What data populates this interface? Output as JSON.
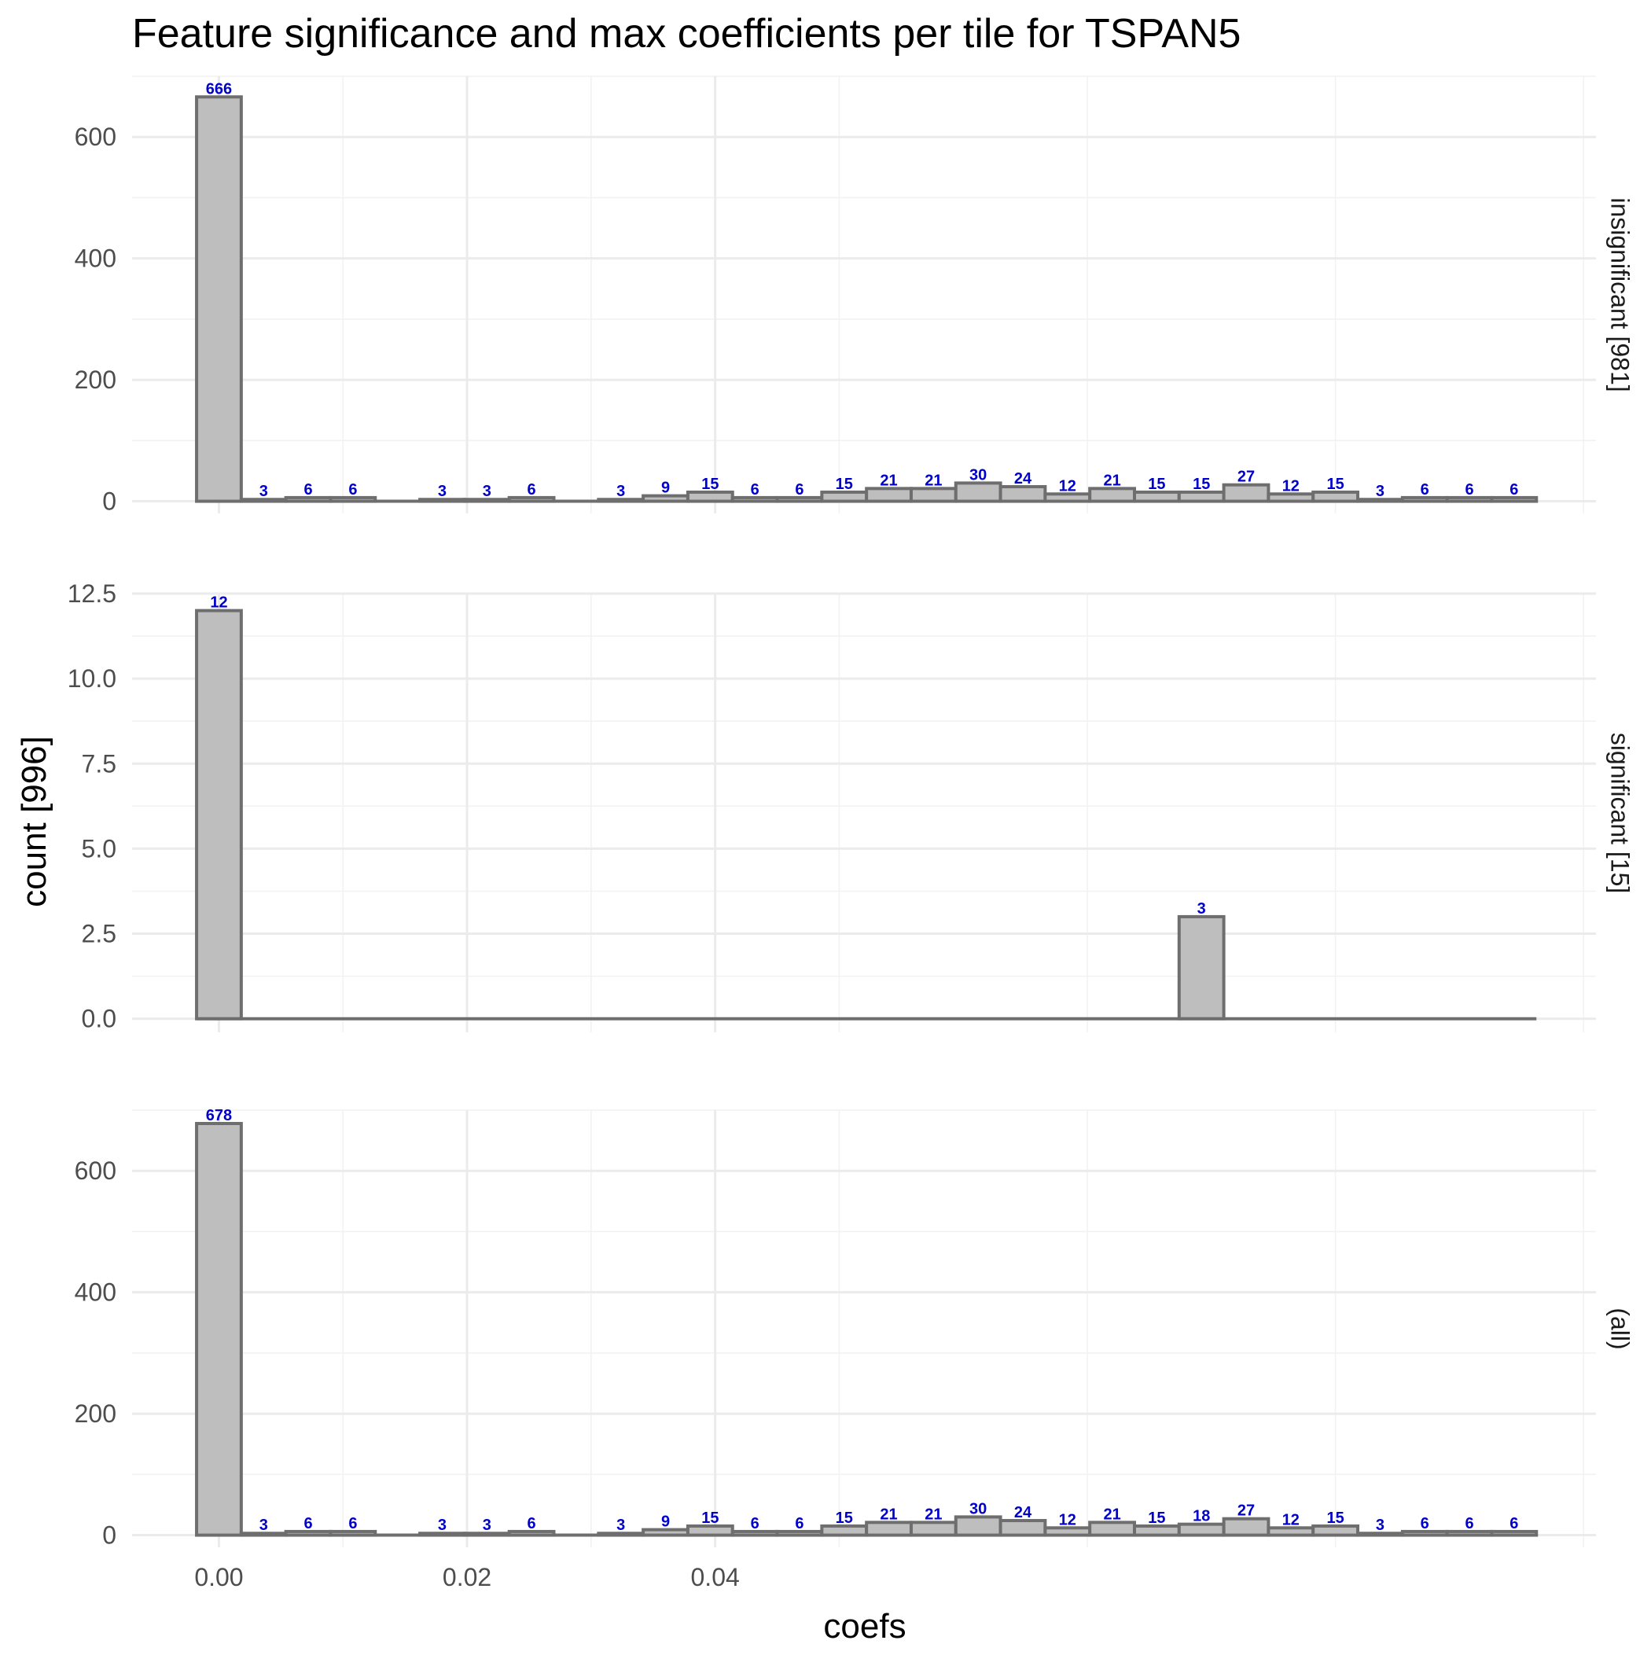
{
  "chart_data": {
    "type": "bar",
    "subtype": "faceted histogram",
    "title": "Feature significance and max coefficients per tile for TSPAN5",
    "xlabel": "coefs",
    "ylabel": "count [996]",
    "x_ticks": [
      "0.00",
      "0.02",
      "0.04"
    ],
    "x_tick_values": [
      0.0,
      0.02,
      0.04
    ],
    "xlim": [
      -0.007,
      0.111
    ],
    "bins": {
      "count": 30,
      "centers": [
        0.0,
        0.0036,
        0.0072,
        0.0108,
        0.0144,
        0.018,
        0.0216,
        0.0252,
        0.0288,
        0.0324,
        0.036,
        0.0396,
        0.0432,
        0.0468,
        0.0504,
        0.054,
        0.0576,
        0.0612,
        0.0648,
        0.0684,
        0.072,
        0.0756,
        0.0792,
        0.0828,
        0.0864,
        0.09,
        0.0936,
        0.0972,
        0.1008,
        0.1044
      ],
      "width": 0.0036
    },
    "grid": true,
    "bar_fill": "#bebebe",
    "bar_outline": "#6e6e6e",
    "label_color": "#0000cc",
    "panels": [
      {
        "name": "insignificant [981]",
        "y_ticks": [
          "0",
          "200",
          "400",
          "600"
        ],
        "y_tick_values": [
          0,
          200,
          400,
          600
        ],
        "ylim": [
          -20,
          700
        ],
        "values": [
          666,
          3,
          6,
          6,
          0,
          3,
          3,
          6,
          0,
          3,
          9,
          15,
          6,
          6,
          15,
          21,
          21,
          30,
          24,
          12,
          21,
          15,
          15,
          27,
          12,
          15,
          3,
          6,
          6,
          6
        ]
      },
      {
        "name": "significant [15]",
        "y_ticks": [
          "0.0",
          "2.5",
          "5.0",
          "7.5",
          "10.0",
          "12.5"
        ],
        "y_tick_values": [
          0,
          2.5,
          5,
          7.5,
          10,
          12.5
        ],
        "ylim": [
          -0.4,
          12.5
        ],
        "values": [
          12,
          0,
          0,
          0,
          0,
          0,
          0,
          0,
          0,
          0,
          0,
          0,
          0,
          0,
          0,
          0,
          0,
          0,
          0,
          0,
          0,
          0,
          3,
          0,
          0,
          0,
          0,
          0,
          0,
          0
        ]
      },
      {
        "name": "(all)",
        "y_ticks": [
          "0",
          "200",
          "400",
          "600"
        ],
        "y_tick_values": [
          0,
          200,
          400,
          600
        ],
        "ylim": [
          -20,
          700
        ],
        "values": [
          678,
          3,
          6,
          6,
          0,
          3,
          3,
          6,
          0,
          3,
          9,
          15,
          6,
          6,
          15,
          21,
          21,
          30,
          24,
          12,
          21,
          15,
          18,
          27,
          12,
          15,
          3,
          6,
          6,
          6
        ]
      }
    ]
  }
}
